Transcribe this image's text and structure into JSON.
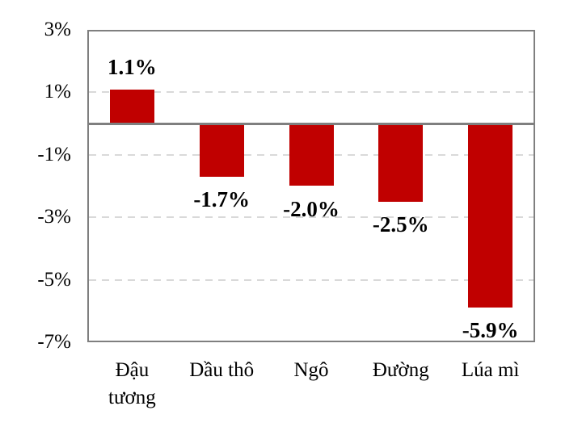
{
  "chart_data": {
    "type": "bar",
    "title": "",
    "xlabel": "",
    "ylabel": "",
    "categories": [
      "Đậu tương",
      "Dầu thô",
      "Ngô",
      "Đường",
      "Lúa mì"
    ],
    "values": [
      1.1,
      -1.7,
      -2.0,
      -2.5,
      -5.9
    ],
    "value_labels": [
      "1.1%",
      "-1.7%",
      "-2.0%",
      "-2.5%",
      "-5.9%"
    ],
    "unit": "%",
    "ylim": [
      -7,
      3
    ],
    "y_ticks": [
      {
        "value": 3,
        "label": "3%"
      },
      {
        "value": 1,
        "label": "1%"
      },
      {
        "value": -1,
        "label": "-1%"
      },
      {
        "value": -3,
        "label": "-3%"
      },
      {
        "value": -5,
        "label": "-5%"
      },
      {
        "value": -7,
        "label": "-7%"
      }
    ],
    "gridline_values": [
      1,
      -1,
      -3,
      -5
    ],
    "gridline_style": "dashed",
    "legend": "none",
    "bar_color": "#C00000"
  },
  "colors": {
    "bar": "#C00000",
    "gridline": "#D9D9D9",
    "axis_line": "#7F7F7F",
    "plot_border": "#7F7F7F",
    "text": "#000000",
    "background": "#FFFFFF"
  }
}
